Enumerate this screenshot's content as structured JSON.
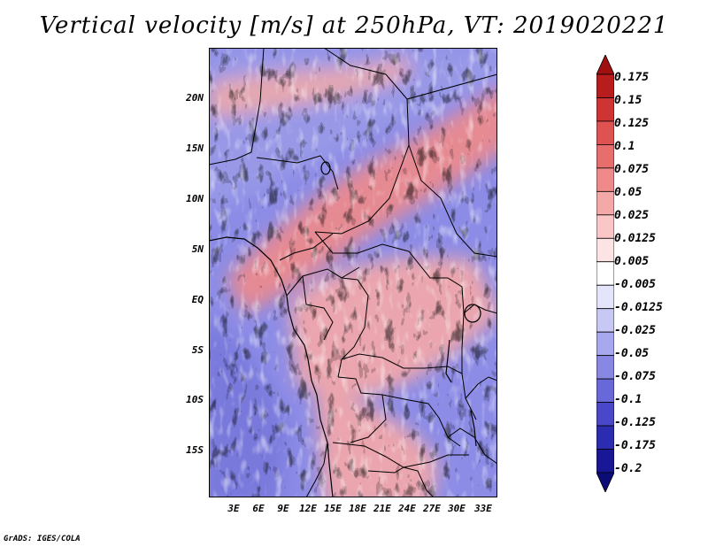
{
  "title": "Vertical velocity [m/s] at 250hPa, VT: 2019020221",
  "credit": "GrADS: IGES/COLA",
  "lat_labels": [
    "20N",
    "15N",
    "10N",
    "5N",
    "EQ",
    "5S",
    "10S",
    "15S"
  ],
  "lon_labels": [
    "3E",
    "6E",
    "9E",
    "12E",
    "15E",
    "18E",
    "21E",
    "24E",
    "27E",
    "30E",
    "33E"
  ],
  "colorbar": {
    "labels": [
      "0.175",
      "0.15",
      "0.125",
      "0.1",
      "0.075",
      "0.05",
      "0.025",
      "0.0125",
      "0.005",
      "-0.005",
      "-0.0125",
      "-0.025",
      "-0.05",
      "-0.075",
      "-0.1",
      "-0.125",
      "-0.175",
      "-0.2"
    ],
    "colors": [
      "#a01010",
      "#b81c1c",
      "#cf3434",
      "#de5252",
      "#e86e6e",
      "#f08a8a",
      "#f5a8a8",
      "#fac6c6",
      "#fde4e4",
      "#ffffff",
      "#e4e4fb",
      "#c8c8f5",
      "#a8a8ee",
      "#8888e4",
      "#6868d8",
      "#4848c8",
      "#2c2cb0",
      "#181896",
      "#0c0c78"
    ]
  },
  "field": {
    "variable": "Vertical velocity",
    "units": "m/s",
    "level": "250hPa",
    "valid_time": "2019020221"
  }
}
